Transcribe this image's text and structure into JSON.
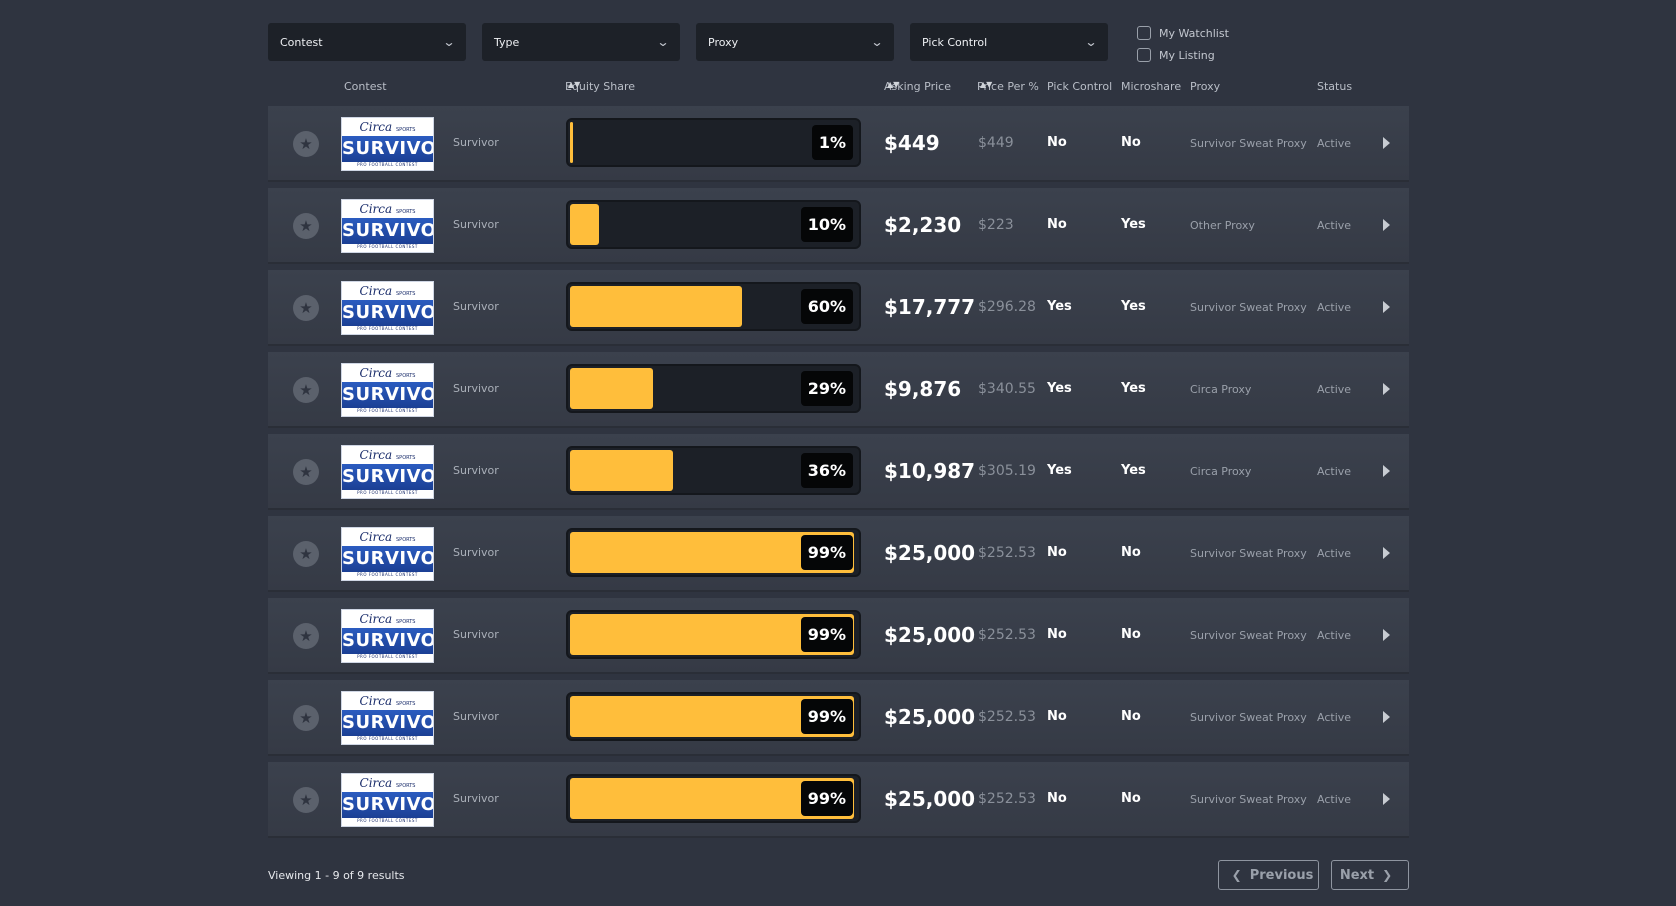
{
  "filters": {
    "dropdowns": [
      {
        "label": "Contest"
      },
      {
        "label": "Type"
      },
      {
        "label": "Proxy"
      },
      {
        "label": "Pick Control"
      }
    ],
    "checkboxes": [
      {
        "label": "My Watchlist",
        "checked": false
      },
      {
        "label": "My Listing",
        "checked": false
      }
    ]
  },
  "columns": {
    "contest": "Contest",
    "equity_share": "Equity Share",
    "asking_price": "Asking Price",
    "price_per_pct": "Price Per %",
    "pick_control": "Pick Control",
    "microshare": "Microshare",
    "proxy": "Proxy",
    "status": "Status"
  },
  "logo": {
    "brand": "Circa",
    "brand_tag": "SPORTS",
    "name": "SURVIVOR",
    "tagline": "PRO FOOTBALL CONTEST"
  },
  "colors": {
    "bar_fill": "#ffbe3b",
    "background": "#2f3440"
  },
  "rows": [
    {
      "contest": "Survivor",
      "equity": 1,
      "equity_label": "1%",
      "asking_price": "$449",
      "price_per": "$449",
      "pick_control": "No",
      "microshare": "No",
      "proxy": "Survivor Sweat Proxy",
      "status": "Active"
    },
    {
      "contest": "Survivor",
      "equity": 10,
      "equity_label": "10%",
      "asking_price": "$2,230",
      "price_per": "$223",
      "pick_control": "No",
      "microshare": "Yes",
      "proxy": "Other Proxy",
      "status": "Active"
    },
    {
      "contest": "Survivor",
      "equity": 60,
      "equity_label": "60%",
      "asking_price": "$17,777",
      "price_per": "$296.28",
      "pick_control": "Yes",
      "microshare": "Yes",
      "proxy": "Survivor Sweat Proxy",
      "status": "Active"
    },
    {
      "contest": "Survivor",
      "equity": 29,
      "equity_label": "29%",
      "asking_price": "$9,876",
      "price_per": "$340.55",
      "pick_control": "Yes",
      "microshare": "Yes",
      "proxy": "Circa Proxy",
      "status": "Active"
    },
    {
      "contest": "Survivor",
      "equity": 36,
      "equity_label": "36%",
      "asking_price": "$10,987",
      "price_per": "$305.19",
      "pick_control": "Yes",
      "microshare": "Yes",
      "proxy": "Circa Proxy",
      "status": "Active"
    },
    {
      "contest": "Survivor",
      "equity": 99,
      "equity_label": "99%",
      "asking_price": "$25,000",
      "price_per": "$252.53",
      "pick_control": "No",
      "microshare": "No",
      "proxy": "Survivor Sweat Proxy",
      "status": "Active"
    },
    {
      "contest": "Survivor",
      "equity": 99,
      "equity_label": "99%",
      "asking_price": "$25,000",
      "price_per": "$252.53",
      "pick_control": "No",
      "microshare": "No",
      "proxy": "Survivor Sweat Proxy",
      "status": "Active"
    },
    {
      "contest": "Survivor",
      "equity": 99,
      "equity_label": "99%",
      "asking_price": "$25,000",
      "price_per": "$252.53",
      "pick_control": "No",
      "microshare": "No",
      "proxy": "Survivor Sweat Proxy",
      "status": "Active"
    },
    {
      "contest": "Survivor",
      "equity": 99,
      "equity_label": "99%",
      "asking_price": "$25,000",
      "price_per": "$252.53",
      "pick_control": "No",
      "microshare": "No",
      "proxy": "Survivor Sweat Proxy",
      "status": "Active"
    }
  ],
  "footer": {
    "viewing": "Viewing 1 - 9 of 9 results",
    "previous": "Previous",
    "next": "Next"
  }
}
